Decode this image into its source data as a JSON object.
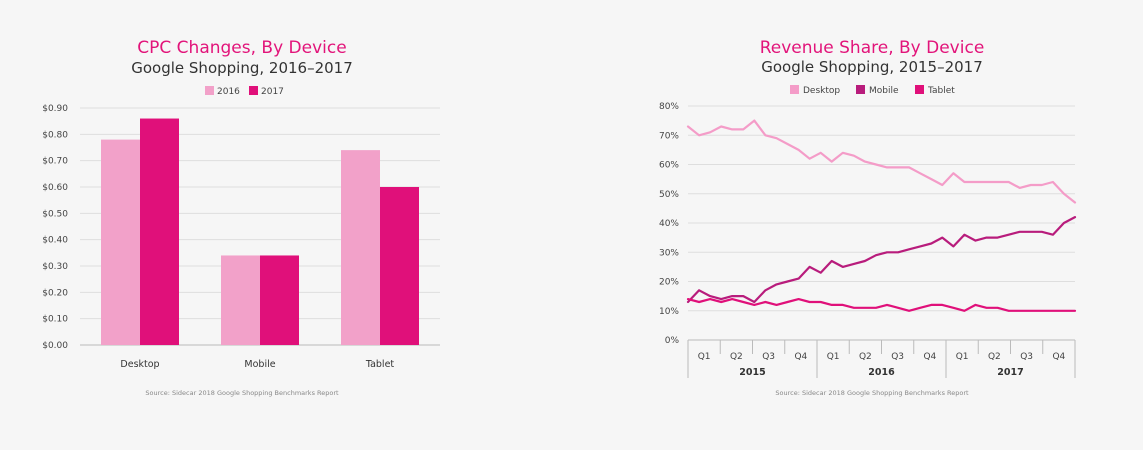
{
  "chart_data": [
    {
      "type": "bar",
      "title": "CPC Changes, By Device",
      "subtitle": "Google Shopping, 2016–2017",
      "categories": [
        "Desktop",
        "Mobile",
        "Tablet"
      ],
      "series": [
        {
          "name": "2016",
          "color": "#f2a1c9",
          "values": [
            0.78,
            0.34,
            0.74
          ]
        },
        {
          "name": "2017",
          "color": "#e0107a",
          "values": [
            0.86,
            0.34,
            0.6
          ]
        }
      ],
      "ylim": [
        0,
        0.9
      ],
      "yticks": [
        "$0.00",
        "$0.10",
        "$0.20",
        "$0.30",
        "$0.40",
        "$0.50",
        "$0.60",
        "$0.70",
        "$0.80",
        "$0.90"
      ],
      "xlabel": "",
      "ylabel": "",
      "grid": true,
      "legend": "top-center",
      "source": "Source: Sidecar 2018 Google Shopping Benchmarks Report"
    },
    {
      "type": "line",
      "title": "Revenue Share, By Device",
      "subtitle": "Google Shopping, 2015–2017",
      "quarters": [
        "Q1",
        "Q2",
        "Q3",
        "Q4",
        "Q1",
        "Q2",
        "Q3",
        "Q4",
        "Q1",
        "Q2",
        "Q3",
        "Q4"
      ],
      "years": [
        "2015",
        "2016",
        "2017"
      ],
      "ylim": [
        0,
        80
      ],
      "yticks": [
        "0%",
        "10%",
        "20%",
        "30%",
        "40%",
        "50%",
        "60%",
        "70%",
        "80%"
      ],
      "series": [
        {
          "name": "Desktop",
          "color": "#f49cc8",
          "values": [
            73,
            70,
            71,
            73,
            72,
            72,
            75,
            70,
            69,
            67,
            65,
            62,
            64,
            61,
            64,
            63,
            61,
            60,
            59,
            59,
            59,
            57,
            55,
            53,
            57,
            54,
            54,
            54,
            54,
            54,
            52,
            53,
            53,
            54,
            50,
            47
          ]
        },
        {
          "name": "Mobile",
          "color": "#b81c7c",
          "values": [
            13,
            17,
            15,
            14,
            15,
            15,
            13,
            17,
            19,
            20,
            21,
            25,
            23,
            27,
            25,
            26,
            27,
            29,
            30,
            30,
            31,
            32,
            33,
            35,
            32,
            36,
            34,
            35,
            35,
            36,
            37,
            37,
            37,
            36,
            40,
            42
          ]
        },
        {
          "name": "Tablet",
          "color": "#e0107a",
          "values": [
            14,
            13,
            14,
            13,
            14,
            13,
            12,
            13,
            12,
            13,
            14,
            13,
            13,
            12,
            12,
            11,
            11,
            11,
            12,
            11,
            10,
            11,
            12,
            12,
            11,
            10,
            12,
            11,
            11,
            10,
            10,
            10,
            10,
            10,
            10,
            10
          ]
        }
      ],
      "xlabel": "",
      "ylabel": "",
      "grid": true,
      "legend": "top-center",
      "source": "Source: Sidecar 2018 Google Shopping Benchmarks Report"
    }
  ]
}
